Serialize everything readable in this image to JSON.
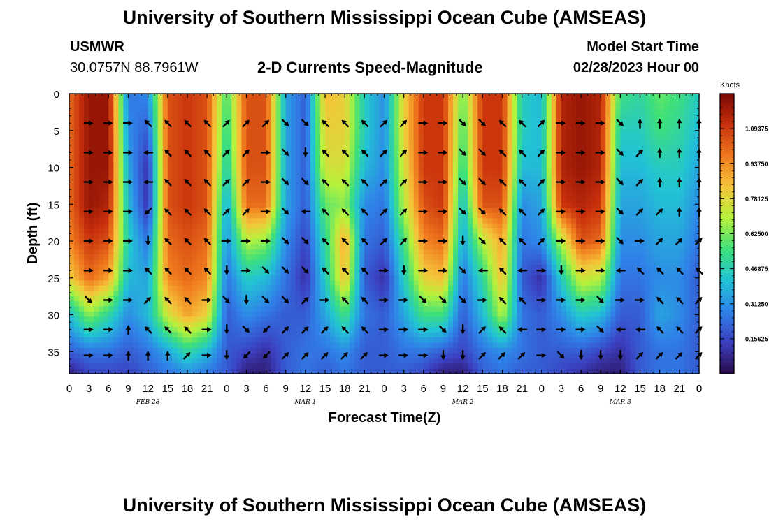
{
  "header": {
    "title_top": "University of Southern Mississippi Ocean Cube (AMSEAS)",
    "title_bottom": "University of Southern Mississippi Ocean Cube (AMSEAS)",
    "station": "USMWR",
    "coords": "30.0757N  88.7961W",
    "plot_title": "2-D Currents Speed-Magnitude",
    "model_label": "Model Start Time",
    "model_time": "02/28/2023 Hour 00"
  },
  "chart_data": {
    "type": "heatmap",
    "title": "2-D Currents Speed-Magnitude",
    "xlabel": "Forecast Time(Z)",
    "ylabel": "Depth (ft)",
    "x_unit": "forecast hours from 02/28/2023 00Z",
    "xlim": [
      0,
      96
    ],
    "ylim": [
      0,
      38
    ],
    "x_ticks": [
      0,
      3,
      6,
      9,
      12,
      15,
      18,
      21,
      24,
      27,
      30,
      33,
      36,
      39,
      42,
      45,
      48,
      51,
      54,
      57,
      60,
      63,
      66,
      69,
      72,
      75,
      78,
      81,
      84,
      87,
      90,
      93,
      96
    ],
    "x_tick_labels": [
      "0",
      "3",
      "6",
      "9",
      "12",
      "15",
      "18",
      "21",
      "0",
      "3",
      "6",
      "9",
      "12",
      "15",
      "18",
      "21",
      "0",
      "3",
      "6",
      "9",
      "12",
      "15",
      "18",
      "21",
      "0",
      "3",
      "6",
      "9",
      "12",
      "15",
      "18",
      "21",
      "0"
    ],
    "y_ticks": [
      0,
      5,
      10,
      15,
      20,
      25,
      30,
      35
    ],
    "y_tick_labels": [
      "0",
      "5",
      "10",
      "15",
      "20",
      "25",
      "30",
      "35"
    ],
    "date_labels": [
      {
        "hour": 12,
        "label": "FEB 28"
      },
      {
        "hour": 36,
        "label": "MAR 1"
      },
      {
        "hour": 60,
        "label": "MAR 2"
      },
      {
        "hour": 84,
        "label": "MAR 3"
      }
    ],
    "colorbar": {
      "label": "Knots",
      "min": 0.0,
      "max": 1.25,
      "tick_values": [
        0.15625,
        0.3125,
        0.46875,
        0.625,
        0.78125,
        0.9375,
        1.09375
      ],
      "tick_labels": [
        "0.15625",
        "0.31250",
        "0.46875",
        "0.62500",
        "0.78125",
        "0.93750",
        "1.09375"
      ],
      "colors": [
        "#2a0a4a",
        "#3b3fbf",
        "#2f82e8",
        "#22c3d5",
        "#3ee07a",
        "#b6f23c",
        "#f5c53a",
        "#f07a1e",
        "#c8300c",
        "#7a0803"
      ]
    },
    "speed_knots": {
      "hours": [
        0,
        3,
        6,
        9,
        12,
        15,
        18,
        21,
        24,
        27,
        30,
        33,
        36,
        39,
        42,
        45,
        48,
        51,
        54,
        57,
        60,
        63,
        66,
        69,
        72,
        75,
        78,
        81,
        84,
        87,
        90,
        93,
        96
      ],
      "depths_ft": [
        0,
        5,
        10,
        15,
        20,
        25,
        30,
        35,
        38
      ],
      "values": [
        [
          1.0,
          1.2,
          1.2,
          0.25,
          0.3,
          1.05,
          1.1,
          1.05,
          0.55,
          1.05,
          1.05,
          0.35,
          0.2,
          0.85,
          0.8,
          0.45,
          0.3,
          0.8,
          1.1,
          1.1,
          0.6,
          1.1,
          1.1,
          0.45,
          0.4,
          1.15,
          1.2,
          1.15,
          0.55,
          0.5,
          0.6,
          0.55,
          0.45
        ],
        [
          1.0,
          1.2,
          1.2,
          0.3,
          0.2,
          1.05,
          1.1,
          1.05,
          0.5,
          1.05,
          1.05,
          0.35,
          0.2,
          0.8,
          0.8,
          0.45,
          0.3,
          0.8,
          1.1,
          1.1,
          0.55,
          1.1,
          1.1,
          0.45,
          0.4,
          1.15,
          1.2,
          1.15,
          0.45,
          0.45,
          0.55,
          0.5,
          0.4
        ],
        [
          1.0,
          1.2,
          1.2,
          0.35,
          0.1,
          1.05,
          1.1,
          1.05,
          0.45,
          1.05,
          1.05,
          0.35,
          0.2,
          0.75,
          0.75,
          0.4,
          0.3,
          0.75,
          1.1,
          1.1,
          0.5,
          1.1,
          1.1,
          0.4,
          0.4,
          1.15,
          1.2,
          1.15,
          0.4,
          0.4,
          0.45,
          0.45,
          0.35
        ],
        [
          1.0,
          1.2,
          1.15,
          0.4,
          0.1,
          1.05,
          1.1,
          1.05,
          0.35,
          1.0,
          1.0,
          0.35,
          0.2,
          0.6,
          0.65,
          0.3,
          0.25,
          0.7,
          1.05,
          1.1,
          0.4,
          1.05,
          1.05,
          0.3,
          0.35,
          1.1,
          1.15,
          1.1,
          0.35,
          0.35,
          0.4,
          0.4,
          0.3
        ],
        [
          0.95,
          1.1,
          1.05,
          0.45,
          0.25,
          1.0,
          1.05,
          1.0,
          0.3,
          0.7,
          0.65,
          0.3,
          0.15,
          0.5,
          0.9,
          0.25,
          0.2,
          0.55,
          0.95,
          1.0,
          0.35,
          0.7,
          0.9,
          0.25,
          0.3,
          0.7,
          1.05,
          1.0,
          0.3,
          0.3,
          0.35,
          0.35,
          0.25
        ],
        [
          0.8,
          1.0,
          0.9,
          0.4,
          0.35,
          0.95,
          1.0,
          0.95,
          0.25,
          0.45,
          0.4,
          0.25,
          0.1,
          0.45,
          0.85,
          0.2,
          0.1,
          0.45,
          0.8,
          0.85,
          0.25,
          0.5,
          0.85,
          0.2,
          0.1,
          0.45,
          0.75,
          0.7,
          0.25,
          0.25,
          0.3,
          0.3,
          0.2
        ],
        [
          0.4,
          0.65,
          0.5,
          0.3,
          0.4,
          0.75,
          0.9,
          0.8,
          0.2,
          0.3,
          0.25,
          0.2,
          0.2,
          0.35,
          0.55,
          0.25,
          0.2,
          0.35,
          0.55,
          0.55,
          0.2,
          0.4,
          0.7,
          0.25,
          0.2,
          0.3,
          0.45,
          0.4,
          0.2,
          0.2,
          0.35,
          0.3,
          0.2
        ],
        [
          0.2,
          0.25,
          0.25,
          0.2,
          0.25,
          0.35,
          0.5,
          0.4,
          0.2,
          0.15,
          0.1,
          0.2,
          0.25,
          0.25,
          0.3,
          0.2,
          0.2,
          0.25,
          0.25,
          0.2,
          0.15,
          0.25,
          0.3,
          0.25,
          0.2,
          0.2,
          0.2,
          0.15,
          0.1,
          0.2,
          0.25,
          0.25,
          0.2
        ],
        [
          0.05,
          0.15,
          0.15,
          0.15,
          0.2,
          0.25,
          0.3,
          0.25,
          0.2,
          0.05,
          0.05,
          0.2,
          0.25,
          0.2,
          0.25,
          0.2,
          0.2,
          0.2,
          0.15,
          0.05,
          0.05,
          0.2,
          0.25,
          0.2,
          0.2,
          0.15,
          0.1,
          0.05,
          0.05,
          0.2,
          0.25,
          0.25,
          0.2
        ]
      ]
    },
    "vectors": {
      "hours": [
        3,
        6,
        9,
        12,
        15,
        18,
        21,
        24,
        27,
        30,
        33,
        36,
        39,
        42,
        45,
        48,
        51,
        54,
        57,
        60,
        63,
        66,
        69,
        72,
        75,
        78,
        81,
        84,
        87,
        90,
        93,
        96
      ],
      "depths_ft": [
        4,
        8,
        12,
        16,
        20,
        24,
        28,
        32,
        35.5
      ],
      "direction_deg": [
        [
          90,
          90,
          90,
          315,
          315,
          315,
          315,
          45,
          45,
          45,
          135,
          135,
          315,
          315,
          315,
          45,
          45,
          90,
          90,
          135,
          135,
          315,
          315,
          45,
          90,
          90,
          90,
          135,
          0,
          0,
          0,
          0
        ],
        [
          90,
          90,
          90,
          270,
          315,
          315,
          315,
          45,
          45,
          90,
          135,
          180,
          315,
          315,
          315,
          45,
          45,
          90,
          90,
          135,
          135,
          315,
          315,
          45,
          90,
          90,
          90,
          135,
          45,
          0,
          0,
          0
        ],
        [
          90,
          90,
          90,
          270,
          315,
          315,
          315,
          45,
          45,
          90,
          135,
          135,
          315,
          315,
          315,
          45,
          45,
          90,
          90,
          135,
          135,
          315,
          315,
          45,
          90,
          90,
          90,
          135,
          45,
          0,
          0,
          0
        ],
        [
          90,
          90,
          90,
          225,
          315,
          315,
          315,
          45,
          45,
          90,
          135,
          270,
          315,
          315,
          315,
          45,
          45,
          90,
          90,
          135,
          135,
          315,
          315,
          45,
          90,
          90,
          90,
          135,
          45,
          45,
          0,
          0
        ],
        [
          90,
          90,
          90,
          180,
          315,
          315,
          315,
          90,
          90,
          90,
          135,
          135,
          315,
          315,
          315,
          45,
          45,
          90,
          90,
          180,
          135,
          315,
          315,
          45,
          90,
          90,
          90,
          135,
          90,
          45,
          45,
          45
        ],
        [
          90,
          90,
          90,
          315,
          315,
          315,
          315,
          180,
          90,
          135,
          135,
          135,
          315,
          315,
          315,
          90,
          180,
          90,
          90,
          135,
          270,
          315,
          270,
          90,
          180,
          90,
          90,
          270,
          315,
          315,
          315,
          315
        ],
        [
          135,
          90,
          90,
          45,
          315,
          315,
          90,
          135,
          180,
          135,
          135,
          45,
          90,
          315,
          315,
          90,
          90,
          135,
          135,
          135,
          90,
          315,
          315,
          90,
          90,
          90,
          135,
          90,
          90,
          315,
          315,
          45
        ],
        [
          90,
          90,
          0,
          315,
          315,
          315,
          90,
          180,
          135,
          225,
          45,
          45,
          45,
          315,
          315,
          90,
          90,
          90,
          135,
          180,
          45,
          315,
          270,
          90,
          90,
          90,
          135,
          270,
          270,
          315,
          315,
          45
        ],
        [
          90,
          90,
          0,
          0,
          0,
          45,
          90,
          180,
          225,
          225,
          45,
          45,
          45,
          45,
          45,
          90,
          90,
          90,
          180,
          180,
          45,
          45,
          45,
          90,
          135,
          180,
          180,
          180,
          45,
          45,
          45,
          45
        ]
      ]
    }
  }
}
